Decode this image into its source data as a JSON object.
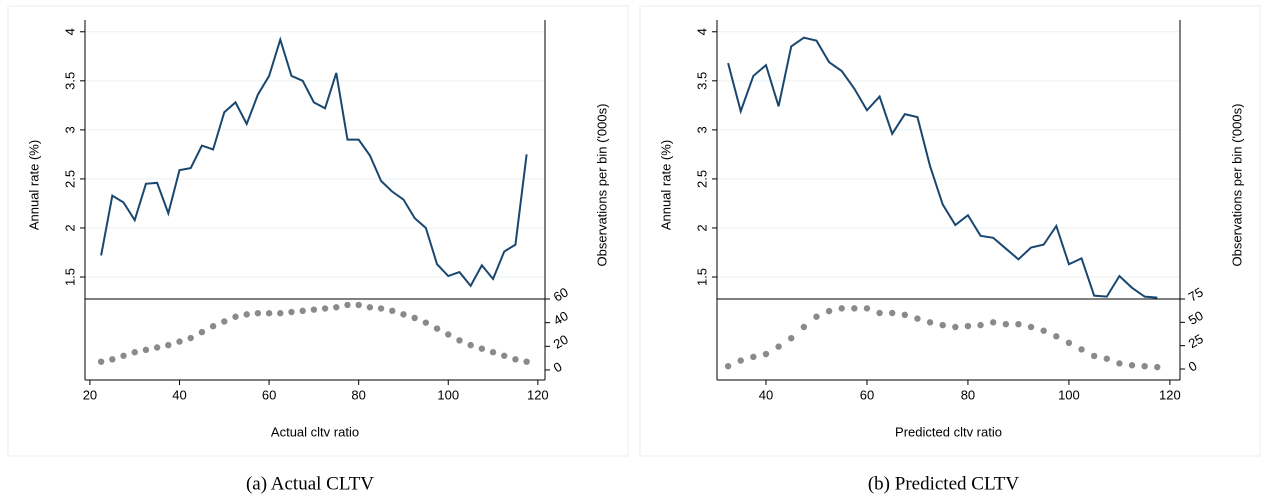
{
  "chart_data": [
    {
      "type": "line",
      "caption": "(a) Actual CLTV",
      "xlabel": "Actual cltv ratio",
      "ylabel": "Annual rate (%)",
      "y2label": "Observations per bin ('000s)",
      "x": [
        22.5,
        25,
        27.5,
        30,
        32.5,
        35,
        37.5,
        40,
        42.5,
        45,
        47.5,
        50,
        52.5,
        55,
        57.5,
        60,
        62.5,
        65,
        67.5,
        70,
        72.5,
        75,
        77.5,
        80,
        82.5,
        85,
        87.5,
        90,
        92.5,
        95,
        97.5,
        100,
        102.5,
        105,
        107.5,
        110,
        112.5,
        115,
        117.5
      ],
      "series": [
        {
          "type": "line",
          "color": "#1a476f",
          "values": [
            1.72,
            2.33,
            2.26,
            2.08,
            2.45,
            2.46,
            2.15,
            2.59,
            2.61,
            2.84,
            2.8,
            3.18,
            3.28,
            3.06,
            3.36,
            3.55,
            3.92,
            3.55,
            3.5,
            3.28,
            3.22,
            3.58,
            2.9,
            2.9,
            2.74,
            2.48,
            2.37,
            2.29,
            2.1,
            2.0,
            1.63,
            1.51,
            1.55,
            1.41,
            1.62,
            1.48,
            1.76,
            1.83,
            2.75
          ]
        },
        {
          "type": "scatter",
          "axis": "y2",
          "color": "#8a8a8a",
          "values": [
            7,
            9,
            12,
            15,
            17,
            19,
            21,
            24,
            27,
            32,
            37,
            41,
            45,
            47,
            48,
            48,
            48,
            49,
            50,
            51,
            52,
            53,
            55,
            55,
            53,
            52,
            50,
            47,
            44,
            40,
            35,
            30,
            25,
            21,
            18,
            15,
            12,
            9,
            7
          ]
        }
      ],
      "xlim": [
        18.9,
        121.6
      ],
      "xticks": [
        20,
        40,
        60,
        80,
        100,
        120
      ],
      "ylim": [
        0.45,
        4.12
      ],
      "yticks": [
        1.5,
        2,
        2.5,
        3,
        3.5,
        4
      ],
      "y2lim": [
        -8.5,
        296
      ],
      "y2ticks": [
        0,
        20,
        40,
        60
      ],
      "grid": true
    },
    {
      "type": "line",
      "caption": "(b) Predicted CLTV",
      "xlabel": "Predicted cltv ratio",
      "ylabel": "Annual rate (%)",
      "y2label": "Observations per bin ('000s)",
      "x": [
        32.5,
        35,
        37.5,
        40,
        42.5,
        45,
        47.5,
        50,
        52.5,
        55,
        57.5,
        60,
        62.5,
        65,
        67.5,
        70,
        72.5,
        75,
        77.5,
        80,
        82.5,
        85,
        87.5,
        90,
        92.5,
        95,
        97.5,
        100,
        102.5,
        105,
        107.5,
        110,
        112.5,
        115,
        117.5
      ],
      "series": [
        {
          "type": "line",
          "color": "#1a476f",
          "values": [
            3.68,
            3.19,
            3.55,
            3.66,
            3.24,
            3.85,
            3.94,
            3.91,
            3.69,
            3.6,
            3.42,
            3.2,
            3.34,
            2.96,
            3.16,
            3.13,
            2.63,
            2.24,
            2.03,
            2.13,
            1.92,
            1.9,
            1.79,
            1.68,
            1.8,
            1.83,
            2.02,
            1.63,
            1.69,
            1.31,
            1.3,
            1.51,
            1.39,
            1.3,
            1.29
          ]
        },
        {
          "type": "scatter",
          "axis": "y2",
          "color": "#8a8a8a",
          "values": [
            3,
            9,
            13,
            16,
            24,
            33,
            45,
            56,
            62,
            65,
            65,
            65,
            60,
            60,
            58,
            54,
            50,
            47,
            45,
            46,
            47,
            50,
            48,
            48,
            45,
            41,
            35,
            28,
            21,
            14,
            11,
            6,
            4,
            3,
            2
          ]
        }
      ],
      "xlim": [
        30.3,
        122
      ],
      "xticks": [
        40,
        60,
        80,
        100,
        120
      ],
      "ylim": [
        0.45,
        4.12
      ],
      "yticks": [
        1.5,
        2,
        2.5,
        3,
        3.5,
        4
      ],
      "y2lim": [
        -11.8,
        374
      ],
      "y2ticks": [
        0,
        25,
        50,
        75
      ],
      "grid": true
    }
  ]
}
